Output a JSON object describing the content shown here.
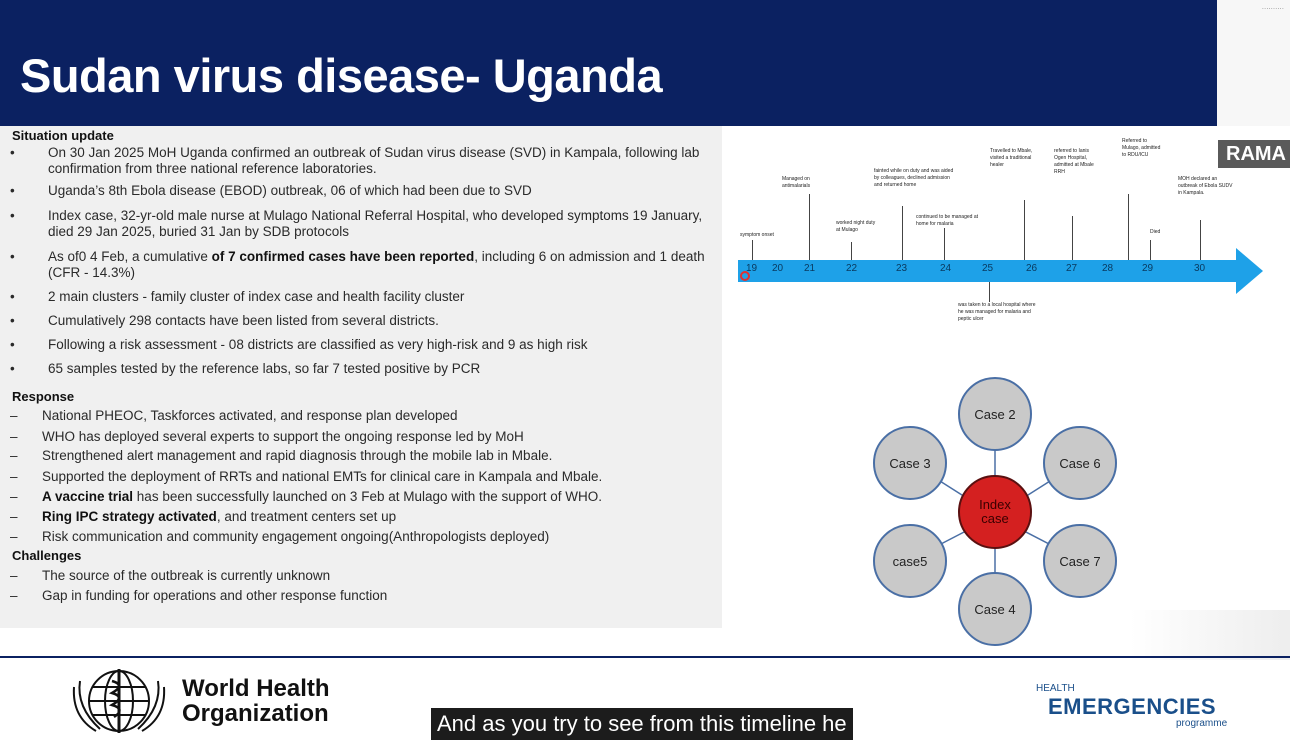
{
  "slide": {
    "title": "Sudan virus disease- Uganda",
    "corner_text": "..........",
    "rama_label": "RAMA"
  },
  "situation": {
    "heading": "Situation update",
    "bullets": [
      {
        "text": "On 30 Jan 2025 MoH Uganda confirmed an outbreak of Sudan virus disease (SVD) in Kampala, following lab confirmation from three national reference laboratories."
      },
      {
        "text": "Uganda’s 8th Ebola disease (EBOD) outbreak, 06 of which had been due to SVD"
      },
      {
        "text": "Index case, 32-yr-old male nurse at Mulago National Referral Hospital, who developed symptoms 19 January, died 29 Jan 2025, buried 31 Jan by SDB protocols"
      },
      {
        "pre": "As of0 4 Feb, a cumulative ",
        "bold": "of 7 confirmed cases have been reported",
        "post": ", including 6 on admission and 1 death (CFR - 14.3%)"
      },
      {
        "text": "2 main clusters - family cluster of index case and health facility cluster"
      },
      {
        "text": "Cumulatively 298 contacts have been listed from several districts."
      },
      {
        "text": "Following a risk assessment - 08 districts are classified as very high-risk and 9 as high risk"
      },
      {
        "text": "65 samples tested by the reference labs, so far 7 tested positive by PCR"
      }
    ]
  },
  "response": {
    "heading": "Response",
    "items": [
      {
        "text": "National PHEOC, Taskforces activated, and response plan developed"
      },
      {
        "text": "WHO has deployed several experts to support the ongoing response led by MoH"
      },
      {
        "text": "Strengthened alert management and rapid diagnosis through the mobile lab in Mbale."
      },
      {
        "text": "Supported the deployment of  RRTs and national EMTs for clinical care in Kampala and Mbale."
      },
      {
        "bold": "A vaccine trial",
        "post": " has been successfully launched on 3 Feb at Mulago with the support of WHO."
      },
      {
        "bold": "Ring IPC strategy activated",
        "post": ", and treatment centers set up"
      },
      {
        "text": "Risk communication and community engagement ongoing(Anthropologists deployed)"
      }
    ]
  },
  "challenges": {
    "heading": "Challenges",
    "items": [
      {
        "text": "The source of the outbreak is currently unknown"
      },
      {
        "text": "Gap in funding for operations and other response function"
      }
    ]
  },
  "timeline": {
    "ticks": [
      "19",
      "20",
      "21",
      "22",
      "23",
      "24",
      "25",
      "26",
      "27",
      "28",
      "29",
      "30"
    ],
    "events_above": [
      "symptom onset",
      "Managed on antimalarials",
      "worked night duty at Mulago",
      "fainted while on duty and was aided by colleagues, declined admission and returned home",
      "continued to be managed at home for malaria",
      "Travelled to Mbale, visited a traditional healer",
      "referred to Ianis Ogen Hospital, admitted at Mbale RRH",
      "Referred to Mulago, admitted to RDU/ICU",
      "Died",
      "MOH declared an outbreak of Ebola SUDV in Kampala."
    ],
    "event_below": "was taken to a local hospital where he was managed for malaria and peptic ulcer"
  },
  "cluster": {
    "center": "Index case",
    "cases": [
      "Case 2",
      "Case 3",
      "Case 6",
      "case5",
      "Case 7",
      "Case 4"
    ]
  },
  "footer": {
    "who_line1": "World Health",
    "who_line2": "Organization",
    "he_small": "HEALTH",
    "he_big": "EMERGENCIES",
    "he_prog": "programme",
    "caption": "And as you try to see from this timeline he"
  }
}
